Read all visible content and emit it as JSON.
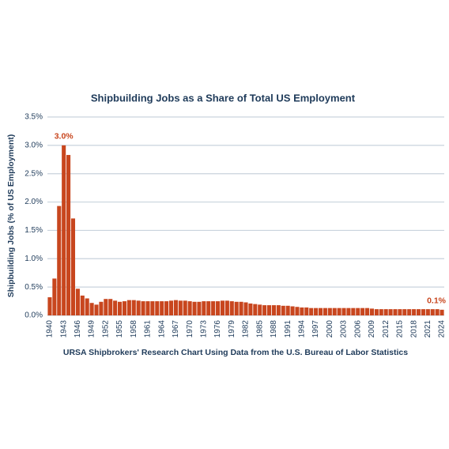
{
  "chart_data": {
    "type": "bar",
    "title": "Shipbuilding Jobs as a Share of Total US Employment",
    "ylabel": "Shipbuilding Jobs (% of US Employment)",
    "xlabel": "URSA Shipbrokers' Research Chart Using Data from the U.S. Bureau of Labor Statistics",
    "categories": [
      "1940",
      null,
      null,
      "1943",
      null,
      null,
      "1946",
      null,
      null,
      "1949",
      null,
      null,
      "1952",
      null,
      null,
      "1955",
      null,
      null,
      "1958",
      null,
      null,
      "1961",
      null,
      null,
      "1964",
      null,
      null,
      "1967",
      null,
      null,
      "1970",
      null,
      null,
      "1973",
      null,
      null,
      "1976",
      null,
      null,
      "1979",
      null,
      null,
      "1982",
      null,
      null,
      "1985",
      null,
      null,
      "1988",
      null,
      null,
      "1991",
      null,
      null,
      "1994",
      null,
      null,
      "1997",
      null,
      null,
      "2000",
      null,
      null,
      "2003",
      null,
      null,
      "2006",
      null,
      null,
      "2009",
      null,
      null,
      "2012",
      null,
      null,
      "2015",
      null,
      null,
      "2018",
      null,
      null,
      "2021",
      null,
      null,
      "2024"
    ],
    "values": [
      0.32,
      0.65,
      1.93,
      3.0,
      2.83,
      1.71,
      0.47,
      0.35,
      0.3,
      0.22,
      0.19,
      0.24,
      0.29,
      0.29,
      0.26,
      0.24,
      0.25,
      0.27,
      0.27,
      0.26,
      0.25,
      0.25,
      0.25,
      0.25,
      0.25,
      0.25,
      0.26,
      0.27,
      0.26,
      0.26,
      0.25,
      0.24,
      0.24,
      0.25,
      0.25,
      0.25,
      0.25,
      0.26,
      0.26,
      0.25,
      0.24,
      0.24,
      0.23,
      0.21,
      0.2,
      0.19,
      0.18,
      0.18,
      0.18,
      0.18,
      0.17,
      0.17,
      0.16,
      0.15,
      0.14,
      0.14,
      0.13,
      0.13,
      0.13,
      0.13,
      0.13,
      0.13,
      0.13,
      0.13,
      0.13,
      0.13,
      0.13,
      0.13,
      0.13,
      0.12,
      0.11,
      0.11,
      0.11,
      0.11,
      0.11,
      0.11,
      0.11,
      0.11,
      0.11,
      0.11,
      0.11,
      0.11,
      0.11,
      0.11,
      0.1
    ],
    "value_labels": [
      null,
      null,
      null,
      "3.0%",
      null,
      null,
      null,
      null,
      null,
      null,
      null,
      null,
      null,
      null,
      null,
      null,
      null,
      null,
      null,
      null,
      null,
      null,
      null,
      null,
      null,
      null,
      null,
      null,
      null,
      null,
      null,
      null,
      null,
      null,
      null,
      null,
      null,
      null,
      null,
      null,
      null,
      null,
      null,
      null,
      null,
      null,
      null,
      null,
      null,
      null,
      null,
      null,
      null,
      null,
      null,
      null,
      null,
      null,
      null,
      null,
      null,
      null,
      null,
      null,
      null,
      null,
      null,
      null,
      null,
      null,
      null,
      null,
      null,
      null,
      null,
      null,
      null,
      null,
      null,
      null,
      null,
      null,
      null,
      null,
      "0.1%"
    ],
    "color": "#c8461e",
    "ylim": [
      0,
      3.5
    ],
    "yticks": [
      {
        "value": 0,
        "label": "0.0%"
      },
      {
        "value": 0.5,
        "label": "0.5%"
      },
      {
        "value": 1,
        "label": "1.0%"
      },
      {
        "value": 1.5,
        "label": "1.5%"
      },
      {
        "value": 2,
        "label": "2.0%"
      },
      {
        "value": 2.5,
        "label": "2.5%"
      },
      {
        "value": 3,
        "label": "3.0%"
      },
      {
        "value": 3.5,
        "label": "3.5%"
      }
    ],
    "grid": true
  }
}
